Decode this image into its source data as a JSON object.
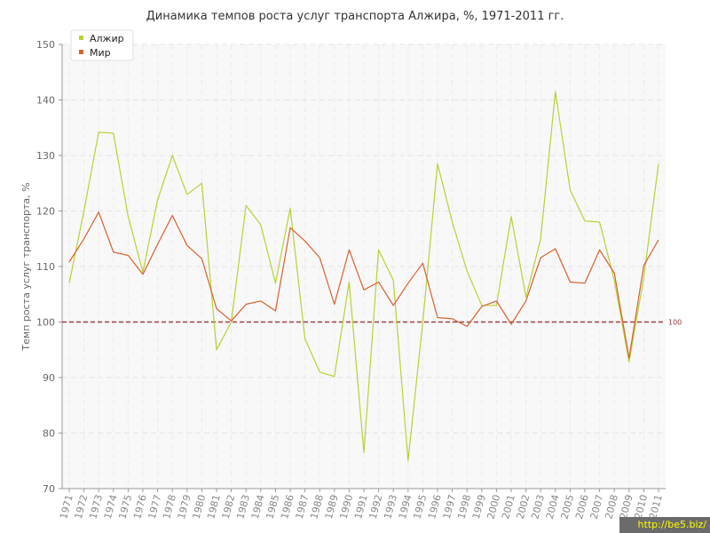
{
  "chart_data": {
    "type": "line",
    "title": "Динамика темпов роста услуг транспорта Алжира, %, 1971-2011 гг.",
    "ylabel": "Темп роста услуг транспорта, %",
    "xlabel": "",
    "ylim": [
      70,
      150
    ],
    "yticks": [
      70,
      80,
      90,
      100,
      110,
      120,
      130,
      140,
      150
    ],
    "grid": true,
    "legend_position": "top-left",
    "reference_line": {
      "value": 100,
      "label": "100",
      "color": "#a04040"
    },
    "x": [
      "1971",
      "1972",
      "1973",
      "1974",
      "1975",
      "1976",
      "1977",
      "1978",
      "1979",
      "1980",
      "1981",
      "1982",
      "1983",
      "1984",
      "1985",
      "1986",
      "1987",
      "1988",
      "1989",
      "1990",
      "1991",
      "1992",
      "1993",
      "1994",
      "1995",
      "1996",
      "1997",
      "1998",
      "1999",
      "2000",
      "2001",
      "2002",
      "2003",
      "2004",
      "2005",
      "2006",
      "2007",
      "2008",
      "2009",
      "2010",
      "2011"
    ],
    "series": [
      {
        "name": "Алжир",
        "color": "#b5d334",
        "values": [
          107,
          120,
          134.2,
          134,
          119,
          109,
          122,
          130,
          123,
          125,
          95,
          100,
          121,
          117.5,
          107,
          120.5,
          97,
          91,
          90.2,
          107.2,
          76.5,
          113,
          107.5,
          75,
          100,
          128.5,
          118,
          109.2,
          103,
          103,
          119,
          104.5,
          115,
          141.5,
          123.8,
          118.2,
          118,
          107.5,
          92.8,
          108,
          128.5
        ]
      },
      {
        "name": "Мир",
        "color": "#d95f2e",
        "values": [
          110.8,
          115,
          119.8,
          112.6,
          112,
          108.6,
          114,
          119.2,
          113.8,
          111.4,
          102.4,
          100.2,
          103.2,
          103.8,
          102,
          117,
          114.6,
          111.6,
          103.2,
          113,
          105.8,
          107.2,
          103,
          107,
          110.6,
          100.8,
          100.6,
          99.2,
          102.8,
          103.8,
          99.6,
          103.8,
          111.6,
          113.2,
          107.2,
          107,
          113,
          108.8,
          93.5,
          110.2,
          114.8
        ]
      }
    ]
  },
  "watermark": "http://be5.biz/"
}
